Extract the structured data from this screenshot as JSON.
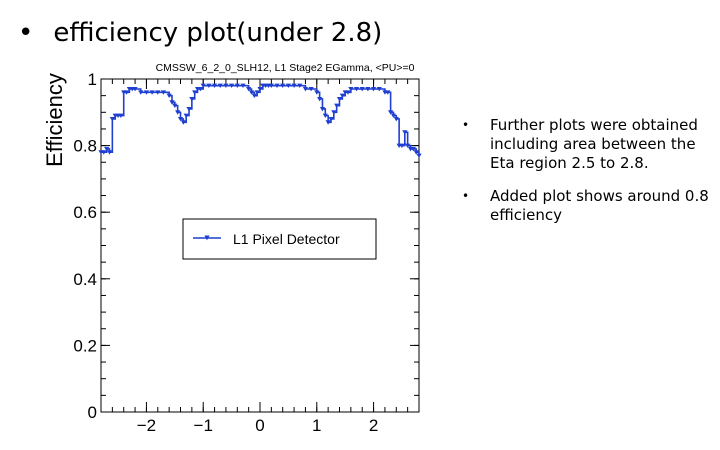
{
  "slide": {
    "bullet": "•",
    "title": "efficiency plot(under 2.8)",
    "notes": [
      "Further plots were obtained including area between the Eta region 2.5 to 2.8.",
      "Added plot shows around 0.8 efficiency"
    ]
  },
  "chart_data": {
    "type": "line",
    "title": "CMSSW_6_2_0_SLH12, L1 Stage2 EGamma, <PU>=0",
    "xlabel": "",
    "ylabel": "Efficiency",
    "xlim": [
      -2.8,
      2.8
    ],
    "ylim": [
      0,
      1
    ],
    "xticks": [
      -2,
      -1,
      0,
      1,
      2
    ],
    "yticks": [
      0,
      0.2,
      0.4,
      0.6,
      0.8,
      1
    ],
    "ytick_labels": [
      "0",
      "0.2",
      "0.4",
      "0.6",
      "0.8",
      "1"
    ],
    "xtick_labels": [
      "−2",
      "−1",
      "0",
      "1",
      "2"
    ],
    "legend": {
      "label": "L1 Pixel Detector",
      "placement": "center-left"
    },
    "color": "#1f3fd1",
    "series": [
      {
        "name": "L1 Pixel Detector",
        "x": [
          -2.8,
          -2.75,
          -2.7,
          -2.65,
          -2.6,
          -2.55,
          -2.5,
          -2.45,
          -2.4,
          -2.35,
          -2.3,
          -2.25,
          -2.2,
          -2.1,
          -2.0,
          -1.9,
          -1.8,
          -1.7,
          -1.6,
          -1.55,
          -1.5,
          -1.45,
          -1.4,
          -1.35,
          -1.3,
          -1.25,
          -1.2,
          -1.15,
          -1.1,
          -1.05,
          -1.0,
          -0.9,
          -0.8,
          -0.7,
          -0.6,
          -0.5,
          -0.4,
          -0.3,
          -0.2,
          -0.15,
          -0.1,
          -0.05,
          0.0,
          0.05,
          0.1,
          0.15,
          0.2,
          0.3,
          0.4,
          0.5,
          0.6,
          0.7,
          0.8,
          0.9,
          1.0,
          1.05,
          1.1,
          1.15,
          1.2,
          1.25,
          1.3,
          1.35,
          1.4,
          1.45,
          1.5,
          1.55,
          1.6,
          1.7,
          1.8,
          1.9,
          2.0,
          2.1,
          2.2,
          2.25,
          2.3,
          2.35,
          2.4,
          2.45,
          2.5,
          2.55,
          2.6,
          2.65,
          2.7,
          2.75,
          2.8
        ],
        "y": [
          0.78,
          0.78,
          0.79,
          0.78,
          0.88,
          0.89,
          0.89,
          0.89,
          0.96,
          0.96,
          0.97,
          0.97,
          0.97,
          0.96,
          0.96,
          0.96,
          0.96,
          0.96,
          0.95,
          0.93,
          0.92,
          0.9,
          0.88,
          0.87,
          0.89,
          0.91,
          0.94,
          0.96,
          0.97,
          0.97,
          0.98,
          0.98,
          0.98,
          0.98,
          0.98,
          0.98,
          0.98,
          0.98,
          0.97,
          0.96,
          0.95,
          0.96,
          0.97,
          0.98,
          0.98,
          0.98,
          0.98,
          0.98,
          0.98,
          0.98,
          0.98,
          0.98,
          0.97,
          0.97,
          0.96,
          0.94,
          0.91,
          0.89,
          0.87,
          0.88,
          0.9,
          0.92,
          0.94,
          0.95,
          0.96,
          0.96,
          0.97,
          0.97,
          0.97,
          0.97,
          0.97,
          0.97,
          0.96,
          0.96,
          0.9,
          0.89,
          0.88,
          0.8,
          0.8,
          0.84,
          0.8,
          0.79,
          0.79,
          0.78,
          0.77
        ]
      }
    ]
  }
}
